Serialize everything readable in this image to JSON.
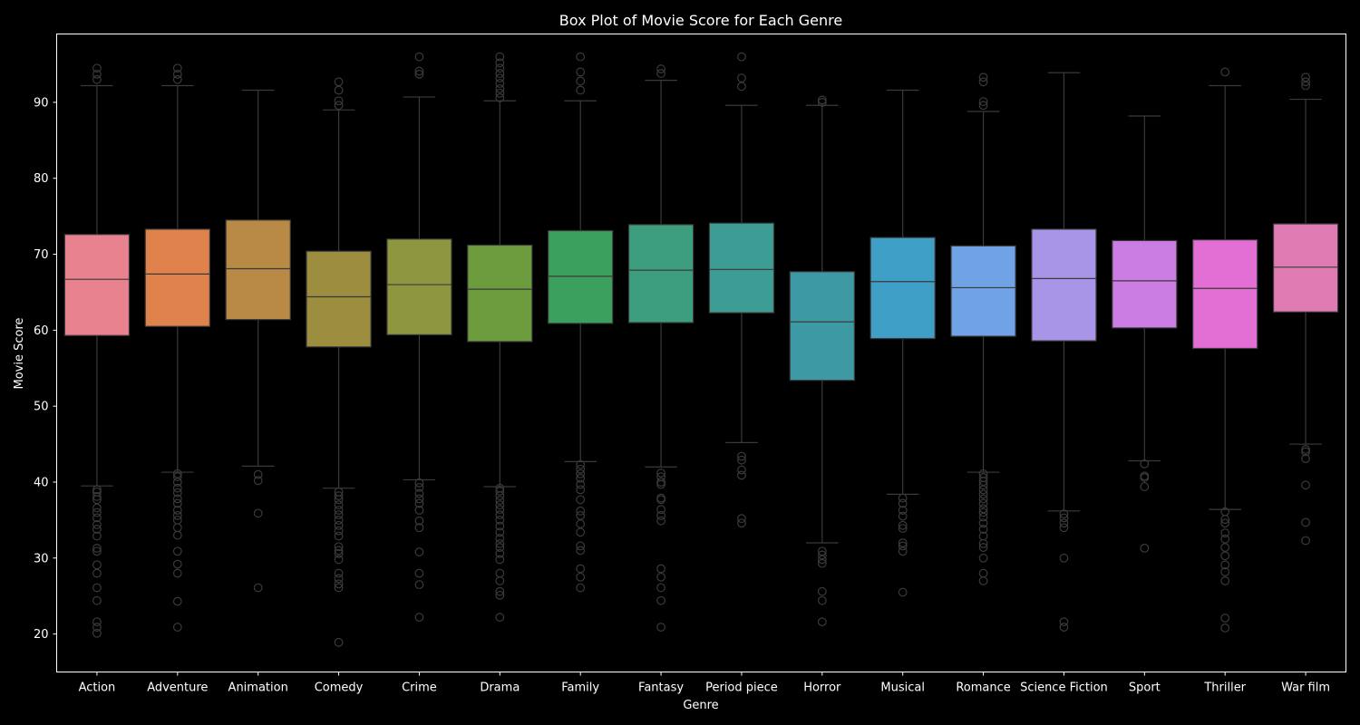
{
  "chart_data": {
    "type": "box",
    "title": "Box Plot of Movie Score for Each Genre",
    "xlabel": "Genre",
    "ylabel": "Movie Score",
    "ylim": [
      15,
      99
    ],
    "yticks": [
      20,
      30,
      40,
      50,
      60,
      70,
      80,
      90
    ],
    "grid": false,
    "background": "#000000",
    "line_color": "#3a3a3a",
    "categories": [
      "Action",
      "Adventure",
      "Animation",
      "Comedy",
      "Crime",
      "Drama",
      "Family",
      "Fantasy",
      "Period piece",
      "Horror",
      "Musical",
      "Romance",
      "Science Fiction",
      "Sport",
      "Thriller",
      "War film"
    ],
    "boxes": [
      {
        "category": "Action",
        "color": "#e8828f",
        "whisker_low": 39.5,
        "q1": 59.3,
        "median": 66.7,
        "q3": 72.6,
        "whisker_high": 92.2,
        "outliers": [
          20.1,
          20.9,
          21.6,
          24.4,
          26.1,
          28.0,
          29.1,
          30.9,
          31.3,
          32.9,
          33.8,
          34.4,
          35.3,
          36.0,
          36.6,
          37.7,
          38.1,
          38.7,
          39.0,
          93.0,
          93.7,
          94.5
        ]
      },
      {
        "category": "Adventure",
        "color": "#e0824b",
        "whisker_low": 41.3,
        "q1": 60.5,
        "median": 67.4,
        "q3": 73.3,
        "whisker_high": 92.2,
        "outliers": [
          20.9,
          24.3,
          28.0,
          29.2,
          30.9,
          33.0,
          34.0,
          35.0,
          35.6,
          36.3,
          37.2,
          37.8,
          38.6,
          39.2,
          40.0,
          40.7,
          41.1,
          93.0,
          93.7,
          94.5
        ]
      },
      {
        "category": "Animation",
        "color": "#b88a45",
        "whisker_low": 42.1,
        "q1": 61.4,
        "median": 68.1,
        "q3": 74.5,
        "whisker_high": 91.6,
        "outliers": [
          26.1,
          35.9,
          40.2,
          41.0
        ]
      },
      {
        "category": "Comedy",
        "color": "#9d8d3e",
        "whisker_low": 39.2,
        "q1": 57.8,
        "median": 64.4,
        "q3": 70.4,
        "whisker_high": 89.0,
        "outliers": [
          18.9,
          26.1,
          26.6,
          27.3,
          28.0,
          29.8,
          30.6,
          31.0,
          31.5,
          32.9,
          33.6,
          34.3,
          35.0,
          35.7,
          36.3,
          37.0,
          37.7,
          38.2,
          38.7,
          89.6,
          90.2,
          91.6,
          92.7
        ]
      },
      {
        "category": "Crime",
        "color": "#8e9740",
        "whisker_low": 40.3,
        "q1": 59.4,
        "median": 66.0,
        "q3": 72.0,
        "whisker_high": 90.7,
        "outliers": [
          22.2,
          26.5,
          28.0,
          30.8,
          34.0,
          34.9,
          36.3,
          37.2,
          37.8,
          38.5,
          39.3,
          39.9,
          93.7,
          94.1,
          96.0
        ]
      },
      {
        "category": "Drama",
        "color": "#6c9c3e",
        "whisker_low": 39.4,
        "q1": 58.5,
        "median": 65.4,
        "q3": 71.2,
        "whisker_high": 90.2,
        "outliers": [
          22.2,
          25.1,
          25.6,
          27.0,
          28.0,
          29.8,
          30.6,
          31.4,
          31.9,
          32.6,
          33.4,
          34.2,
          35.0,
          35.7,
          36.4,
          37.0,
          37.6,
          38.2,
          38.8,
          39.2,
          90.6,
          91.2,
          91.8,
          92.5,
          93.2,
          93.8,
          94.5,
          95.2,
          96.0
        ]
      },
      {
        "category": "Family",
        "color": "#3b9f5e",
        "whisker_low": 42.7,
        "q1": 60.9,
        "median": 67.1,
        "q3": 73.1,
        "whisker_high": 90.2,
        "outliers": [
          26.1,
          27.5,
          28.6,
          31.0,
          31.6,
          33.4,
          34.5,
          35.6,
          36.2,
          37.7,
          39.0,
          39.7,
          40.5,
          41.1,
          41.7,
          42.3,
          91.6,
          92.8,
          94.0,
          96.0
        ]
      },
      {
        "category": "Fantasy",
        "color": "#3d9e7f",
        "whisker_low": 42.0,
        "q1": 61.0,
        "median": 67.9,
        "q3": 73.9,
        "whisker_high": 92.9,
        "outliers": [
          20.9,
          24.4,
          26.1,
          27.5,
          28.6,
          34.9,
          35.6,
          36.4,
          37.7,
          37.9,
          39.7,
          40.0,
          40.7,
          41.2,
          93.8,
          94.4
        ]
      },
      {
        "category": "Period piece",
        "color": "#3d9d94",
        "whisker_low": 45.2,
        "q1": 62.3,
        "median": 68.0,
        "q3": 74.1,
        "whisker_high": 89.6,
        "outliers": [
          34.6,
          35.2,
          40.9,
          41.6,
          42.9,
          43.4,
          92.1,
          93.2,
          96.0
        ]
      },
      {
        "category": "Horror",
        "color": "#3d9aa4",
        "whisker_low": 32.0,
        "q1": 53.4,
        "median": 61.1,
        "q3": 67.7,
        "whisker_high": 89.6,
        "outliers": [
          21.6,
          24.4,
          25.6,
          29.3,
          29.8,
          30.4,
          30.9,
          90.0,
          90.3
        ]
      },
      {
        "category": "Musical",
        "color": "#3f9fc6",
        "whisker_low": 38.4,
        "q1": 58.9,
        "median": 66.4,
        "q3": 72.2,
        "whisker_high": 91.6,
        "outliers": [
          25.5,
          30.9,
          31.6,
          32.0,
          33.9,
          34.3,
          35.5,
          36.3,
          37.2,
          37.9
        ]
      },
      {
        "category": "Romance",
        "color": "#6fa3e6",
        "whisker_low": 41.3,
        "q1": 59.2,
        "median": 65.6,
        "q3": 71.1,
        "whisker_high": 88.8,
        "outliers": [
          27.0,
          28.0,
          30.0,
          31.4,
          31.9,
          32.9,
          33.8,
          34.6,
          35.4,
          36.0,
          36.5,
          37.2,
          37.8,
          38.4,
          39.0,
          39.6,
          40.1,
          40.6,
          41.1,
          89.6,
          90.1,
          92.7,
          93.3
        ]
      },
      {
        "category": "Science Fiction",
        "color": "#a895e8",
        "whisker_low": 36.2,
        "q1": 58.6,
        "median": 66.8,
        "q3": 73.3,
        "whisker_high": 93.9,
        "outliers": [
          20.9,
          21.6,
          30.0,
          34.0,
          34.6,
          35.3,
          35.8
        ]
      },
      {
        "category": "Sport",
        "color": "#cb7de4",
        "whisker_low": 42.8,
        "q1": 60.3,
        "median": 66.5,
        "q3": 71.8,
        "whisker_high": 88.2,
        "outliers": [
          31.3,
          39.4,
          40.6,
          40.8,
          42.4
        ]
      },
      {
        "category": "Thriller",
        "color": "#e36ed4",
        "whisker_low": 36.4,
        "q1": 57.6,
        "median": 65.5,
        "q3": 71.9,
        "whisker_high": 92.2,
        "outliers": [
          20.8,
          22.1,
          27.0,
          28.2,
          29.1,
          30.3,
          31.4,
          32.5,
          33.3,
          34.6,
          35.1,
          36.1,
          94.0
        ]
      },
      {
        "category": "War film",
        "color": "#e07ab3",
        "whisker_low": 45.0,
        "q1": 62.4,
        "median": 68.3,
        "q3": 74.0,
        "whisker_high": 90.4,
        "outliers": [
          32.3,
          34.7,
          39.6,
          43.1,
          44.0,
          44.3,
          92.2,
          92.7,
          93.3
        ]
      }
    ]
  }
}
